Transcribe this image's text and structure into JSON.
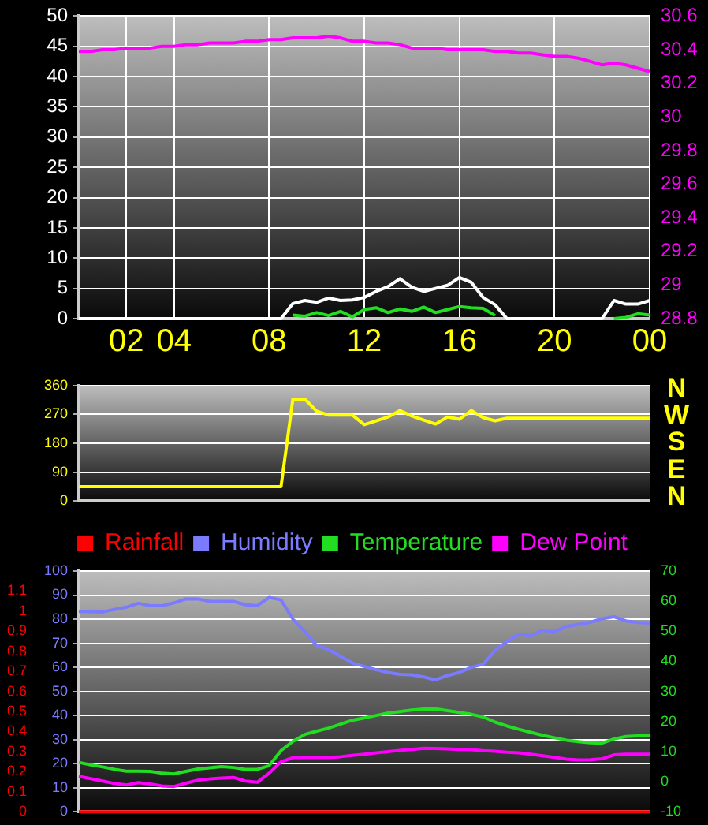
{
  "chart_data": [
    {
      "type": "line",
      "categories": [
        null,
        null,
        null,
        null,
        "02",
        null,
        null,
        null,
        "04",
        null,
        null,
        null,
        null,
        null,
        null,
        null,
        "08",
        null,
        null,
        null,
        null,
        null,
        null,
        null,
        "12",
        null,
        null,
        null,
        null,
        null,
        null,
        null,
        "16",
        null,
        null,
        null,
        null,
        null,
        null,
        null,
        "20",
        null,
        null,
        null,
        null,
        null,
        null,
        null,
        "00"
      ],
      "ylim": [
        0,
        50
      ],
      "yticks": [
        0,
        5,
        10,
        15,
        20,
        25,
        30,
        35,
        40,
        45,
        50
      ],
      "y2lim": [
        28.8,
        30.6
      ],
      "y2ticks": [
        28.8,
        29,
        29.2,
        29.4,
        29.6,
        29.8,
        30,
        30.2,
        30.4,
        30.6
      ],
      "grid": true,
      "series": [
        {
          "color": "#ffffff",
          "values": [
            0,
            0,
            0,
            0,
            0,
            0,
            0,
            0,
            0,
            0,
            0,
            0,
            0,
            0,
            0,
            0,
            0,
            0,
            2.5,
            3,
            2.7,
            3.4,
            3,
            3.1,
            3.5,
            4.5,
            5.3,
            6.6,
            5.2,
            4.5,
            5,
            5.5,
            6.8,
            6,
            3.5,
            2.3,
            0,
            0,
            0,
            0,
            0,
            0,
            0,
            0,
            0,
            3,
            2.4,
            2.4,
            3
          ]
        },
        {
          "color": "#22dd22",
          "values": [
            null,
            null,
            null,
            null,
            null,
            null,
            null,
            null,
            null,
            null,
            null,
            null,
            null,
            null,
            null,
            null,
            null,
            null,
            0.6,
            0.4,
            1,
            0.5,
            1.2,
            0.3,
            1.5,
            1.8,
            1,
            1.6,
            1.2,
            1.9,
            1,
            1.5,
            2,
            1.8,
            1.7,
            0.5,
            null,
            null,
            null,
            null,
            null,
            null,
            null,
            null,
            null,
            0,
            0.2,
            0.8,
            0.6
          ]
        },
        {
          "color": "#ff00ff",
          "axis": "y2",
          "values": [
            30.39,
            30.39,
            30.4,
            30.4,
            30.41,
            30.41,
            30.41,
            30.42,
            30.42,
            30.43,
            30.43,
            30.44,
            30.44,
            30.44,
            30.45,
            30.45,
            30.46,
            30.46,
            30.47,
            30.47,
            30.47,
            30.48,
            30.47,
            30.45,
            30.45,
            30.44,
            30.44,
            30.43,
            30.41,
            30.41,
            30.41,
            30.4,
            30.4,
            30.4,
            30.4,
            30.39,
            30.39,
            30.38,
            30.38,
            30.37,
            30.36,
            30.36,
            30.35,
            30.33,
            30.31,
            30.32,
            30.31,
            30.29,
            30.27
          ]
        }
      ]
    },
    {
      "type": "line",
      "categories": [
        null,
        null,
        null,
        null,
        null,
        null,
        null,
        null,
        null,
        null,
        null,
        null,
        null,
        null,
        null,
        null,
        null,
        null,
        null,
        null,
        null,
        null,
        null,
        null,
        null,
        null,
        null,
        null,
        null,
        null,
        null,
        null,
        null,
        null,
        null,
        null,
        null,
        null,
        null,
        null,
        null,
        null,
        null,
        null,
        null,
        null,
        null,
        null,
        null
      ],
      "ylim": [
        0,
        360
      ],
      "yticks": [
        0,
        90,
        180,
        270,
        360
      ],
      "grid": "y",
      "annotations": [
        "N",
        "W",
        "S",
        "E",
        "N"
      ],
      "series": [
        {
          "color": "#ffff00",
          "values": [
            45,
            45,
            45,
            45,
            45,
            45,
            45,
            45,
            45,
            45,
            45,
            45,
            45,
            45,
            45,
            45,
            45,
            45,
            318,
            318,
            280,
            268,
            268,
            268,
            238,
            250,
            262,
            282,
            265,
            252,
            240,
            262,
            255,
            282,
            260,
            250,
            258,
            258,
            258,
            258,
            258,
            258,
            258,
            258,
            258,
            258,
            258,
            258,
            258
          ]
        }
      ]
    },
    {
      "type": "line",
      "categories": [
        null,
        null,
        null,
        null,
        null,
        null,
        null,
        null,
        null,
        null,
        null,
        null,
        null,
        null,
        null,
        null,
        null,
        null,
        null,
        null,
        null,
        null,
        null,
        null,
        null,
        null,
        null,
        null,
        null,
        null,
        null,
        null,
        null,
        null,
        null,
        null,
        null,
        null,
        null,
        null,
        null,
        null,
        null,
        null,
        null,
        null,
        null,
        null,
        null
      ],
      "ylim": [
        0,
        100
      ],
      "yticks": [
        0,
        10,
        20,
        30,
        40,
        50,
        60,
        70,
        80,
        90,
        100
      ],
      "y2lim": [
        0,
        1.2
      ],
      "y2ticks": [
        0,
        0.1,
        0.2,
        0.3,
        0.4,
        0.5,
        0.6,
        0.7,
        0.8,
        0.9,
        1,
        1.1
      ],
      "y3lim": [
        -10,
        70
      ],
      "y3ticks": [
        -10,
        0,
        10,
        20,
        30,
        40,
        50,
        60,
        70
      ],
      "grid": "y",
      "legend": "top",
      "series": [
        {
          "name": "Rainfall",
          "color": "#ff0000",
          "axis": "y2",
          "values": [
            0,
            0,
            0,
            0,
            0,
            0,
            0,
            0,
            0,
            0,
            0,
            0,
            0,
            0,
            0,
            0,
            0,
            0,
            0,
            0,
            0,
            0,
            0,
            0,
            0,
            0,
            0,
            0,
            0,
            0,
            0,
            0,
            0,
            0,
            0,
            0,
            0,
            0,
            0,
            0,
            0,
            0,
            0,
            0,
            0,
            0,
            0,
            0,
            0
          ]
        },
        {
          "name": "Humidity",
          "color": "#7b7bff",
          "values": [
            83.2,
            83.1,
            83,
            84,
            85,
            86.6,
            85.6,
            85.6,
            86.8,
            88.4,
            88.4,
            87.4,
            87.4,
            87.4,
            86,
            85.6,
            89,
            88,
            80,
            74.8,
            69,
            67.4,
            64.5,
            61.8,
            60.4,
            59,
            57.9,
            57.1,
            56.9,
            56,
            54.8,
            56.6,
            57.9,
            60,
            61.3,
            67,
            70.7,
            73.6,
            73,
            75.4,
            74.8,
            77,
            77.8,
            78.7,
            80.2,
            81,
            79.3,
            78.6,
            78.4
          ]
        },
        {
          "name": "Temperature",
          "color": "#22dd22",
          "axis": "y3",
          "values": [
            6.4,
            5.6,
            4.9,
            4.1,
            3.5,
            3.5,
            3.4,
            2.8,
            2.6,
            3.4,
            4.2,
            4.6,
            5,
            4.7,
            4.1,
            4.1,
            5.3,
            10.3,
            13.4,
            15.7,
            16.8,
            17.8,
            19.1,
            20.4,
            21.2,
            22,
            22.8,
            23.3,
            23.8,
            24.1,
            24.2,
            23.6,
            23,
            22.4,
            21.5,
            19.8,
            18.5,
            17.4,
            16.4,
            15.4,
            14.6,
            13.8,
            13.3,
            12.9,
            12.8,
            14.2,
            15,
            15.2,
            15.3
          ]
        },
        {
          "name": "Dew Point",
          "color": "#ff00ff",
          "axis": "y3",
          "values": [
            1.8,
            1,
            0.2,
            -0.6,
            -1.1,
            -0.3,
            -0.8,
            -1.4,
            -1.6,
            -0.5,
            0.5,
            0.9,
            1.2,
            1.4,
            0.2,
            -0.2,
            2.8,
            6.6,
            8,
            8,
            8,
            8,
            8.3,
            8.7,
            9.1,
            9.6,
            10,
            10.4,
            10.7,
            11.1,
            11,
            10.9,
            10.7,
            10.6,
            10.3,
            10.1,
            9.8,
            9.6,
            9.1,
            8.6,
            8.1,
            7.5,
            7.2,
            7.3,
            7.6,
            8.9,
            9.1,
            9.1,
            9.1
          ]
        }
      ]
    }
  ]
}
